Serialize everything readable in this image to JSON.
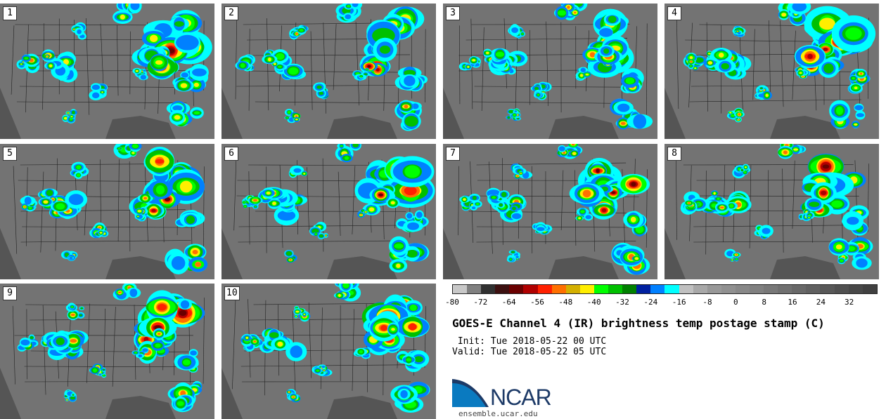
{
  "panels": [
    {
      "label": "1"
    },
    {
      "label": "2"
    },
    {
      "label": "3"
    },
    {
      "label": "4"
    },
    {
      "label": "5"
    },
    {
      "label": "6"
    },
    {
      "label": "7"
    },
    {
      "label": "8"
    },
    {
      "label": "9"
    },
    {
      "label": "10"
    }
  ],
  "colorbar": {
    "colors": [
      "#c8c8c8",
      "#808080",
      "#303030",
      "#3c1010",
      "#6a0000",
      "#b00000",
      "#ff2000",
      "#ff7000",
      "#d4b000",
      "#ffee00",
      "#00ff00",
      "#00c000",
      "#008000",
      "#0020a0",
      "#0080ff",
      "#00ffff",
      "#c0c0c0",
      "#a8a8a8",
      "#989898",
      "#909090",
      "#888888",
      "#808080",
      "#787878",
      "#707070",
      "#686868",
      "#606060",
      "#585858",
      "#505050",
      "#484848",
      "#404040"
    ],
    "ticks": [
      "-80",
      "-72",
      "-64",
      "-56",
      "-48",
      "-40",
      "-32",
      "-24",
      "-16",
      "-8",
      "0",
      "8",
      "16",
      "24",
      "32"
    ],
    "min": -80,
    "max": 40
  },
  "title": "GOES-E Channel 4 (IR) brightness temp postage stamp (C)",
  "init": " Init: Tue 2018-05-22 00 UTC",
  "valid": "Valid: Tue 2018-05-22 05 UTC",
  "logo": {
    "text": "NCAR",
    "site": "ensemble.ucar.edu",
    "color": "#0a7ac0"
  }
}
